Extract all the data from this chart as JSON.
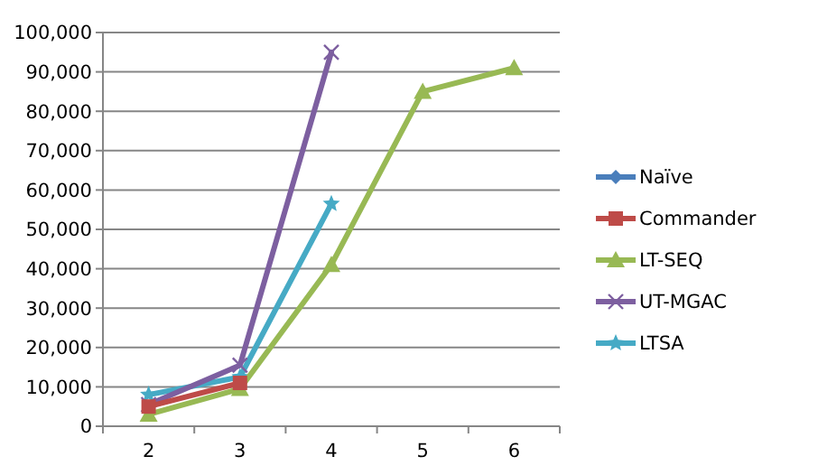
{
  "chart_data": {
    "type": "line",
    "categories": [
      "2",
      "3",
      "4",
      "5",
      "6"
    ],
    "ylim": [
      0,
      100000
    ],
    "yticks": [
      {
        "value": 0,
        "label": "0"
      },
      {
        "value": 10000,
        "label": "10,000"
      },
      {
        "value": 20000,
        "label": "20,000"
      },
      {
        "value": 30000,
        "label": "30,000"
      },
      {
        "value": 40000,
        "label": "40,000"
      },
      {
        "value": 50000,
        "label": "50,000"
      },
      {
        "value": 60000,
        "label": "60,000"
      },
      {
        "value": 70000,
        "label": "70,000"
      },
      {
        "value": 80000,
        "label": "80,000"
      },
      {
        "value": 90000,
        "label": "90,000"
      },
      {
        "value": 100000,
        "label": "100,000"
      }
    ],
    "grid": "y",
    "legend": "right",
    "series": [
      {
        "name": "Naïve",
        "color": "#4a7ebb",
        "marker": "diamond",
        "values": [
          null,
          null,
          null,
          null,
          null
        ]
      },
      {
        "name": "Commander",
        "color": "#be4b48",
        "marker": "square",
        "values": [
          5000,
          11000,
          null,
          null,
          null
        ]
      },
      {
        "name": "LT-SEQ",
        "color": "#98b954",
        "marker": "triangle",
        "values": [
          3000,
          9500,
          41000,
          85000,
          91000
        ]
      },
      {
        "name": "UT-MGAC",
        "color": "#7d5fa0",
        "marker": "cross",
        "values": [
          5500,
          15500,
          95000,
          null,
          null
        ]
      },
      {
        "name": "LTSA",
        "color": "#46aac5",
        "marker": "star",
        "values": [
          8000,
          12500,
          56500,
          null,
          null
        ]
      }
    ]
  }
}
